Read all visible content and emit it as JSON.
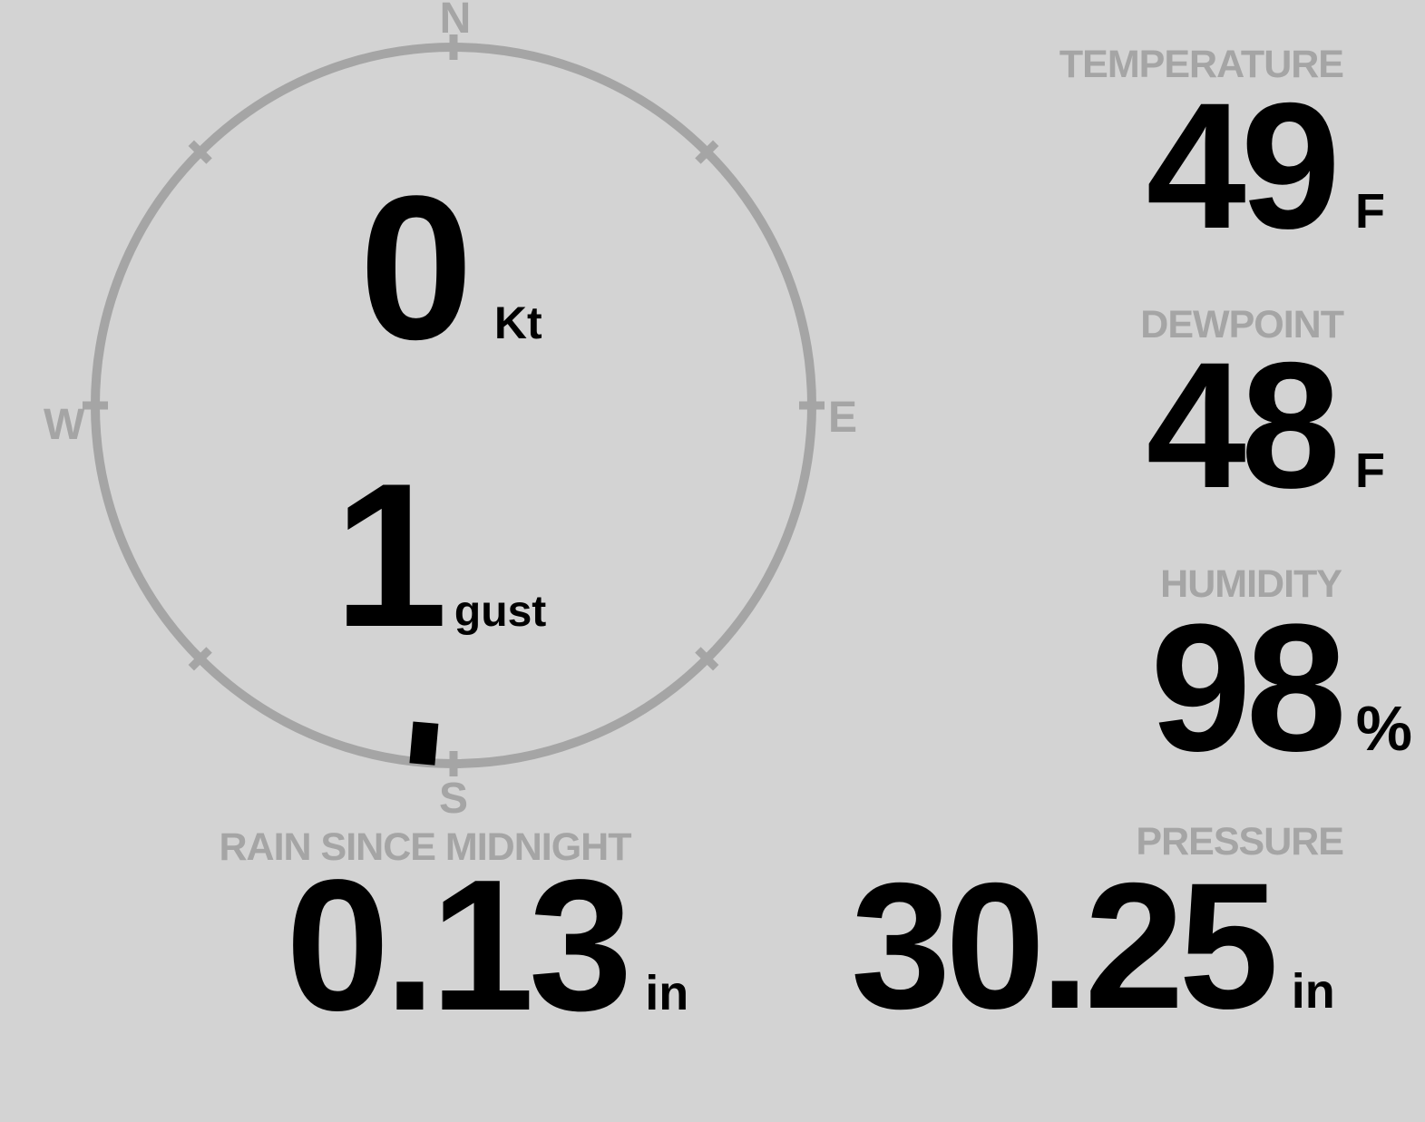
{
  "colors": {
    "background": "#d3d3d3",
    "muted": "#a5a5a5",
    "text": "#000000"
  },
  "compass": {
    "north": "N",
    "east": "E",
    "south": "S",
    "west": "W",
    "wind_direction_deg": 185
  },
  "wind": {
    "speed": "0",
    "speed_unit": "Kt",
    "gust": "1",
    "gust_unit": "gust"
  },
  "temperature": {
    "label": "TEMPERATURE",
    "value": "49",
    "unit": "F"
  },
  "dewpoint": {
    "label": "DEWPOINT",
    "value": "48",
    "unit": "F"
  },
  "humidity": {
    "label": "HUMIDITY",
    "value": "98",
    "unit": "%"
  },
  "rain": {
    "label": "RAIN SINCE MIDNIGHT",
    "value": "0.13",
    "unit": "in"
  },
  "pressure": {
    "label": "PRESSURE",
    "value": "30.25",
    "unit": "in"
  }
}
